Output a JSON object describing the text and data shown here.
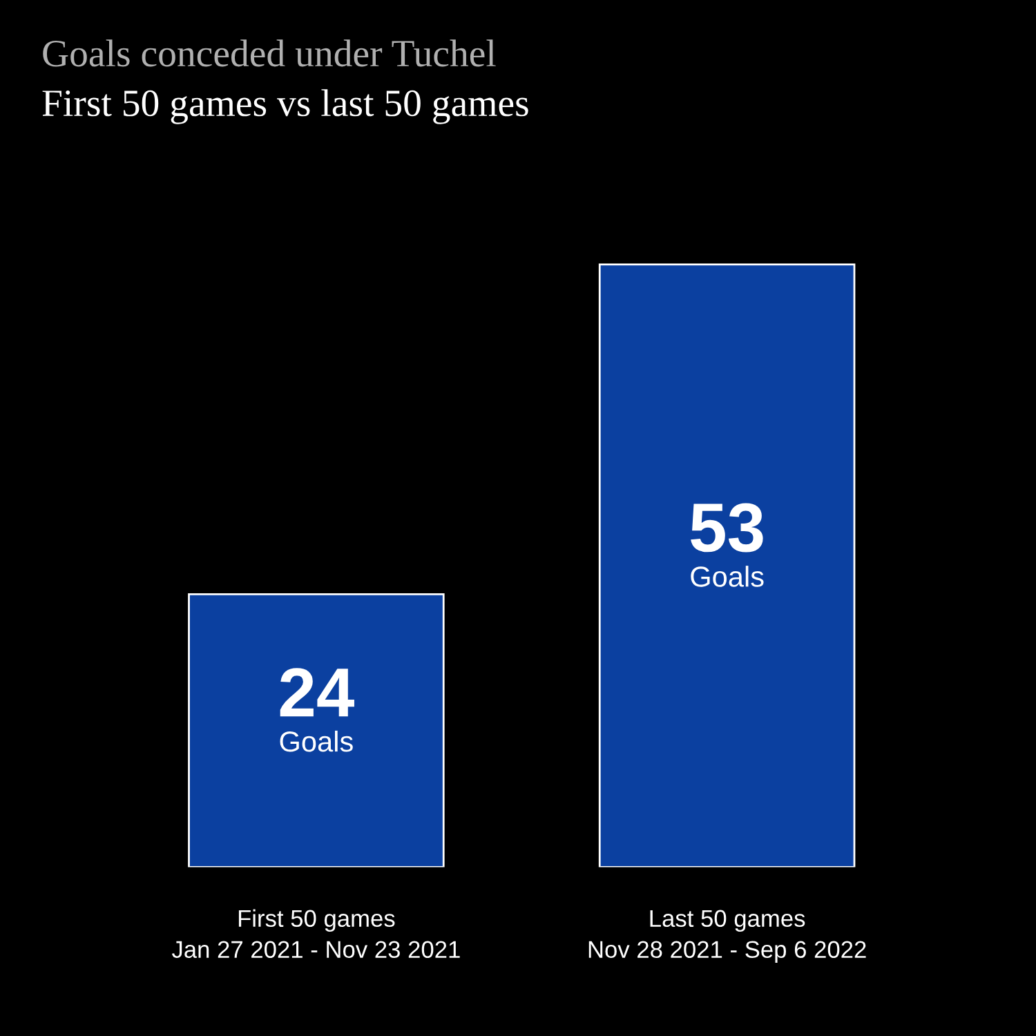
{
  "chart_data": {
    "type": "bar",
    "title": "Goals conceded under Tuchel",
    "subtitle": "First 50 games vs last 50 games",
    "categories": [
      "First 50 games\nJan 27 2021 - Nov 23 2021",
      "Last 50 games\nNov 28 2021 - Sep 6 2022"
    ],
    "values": [
      24,
      53
    ],
    "value_labels": [
      "24\nGoals",
      "53\nGoals"
    ],
    "color": "#0b40a0"
  }
}
